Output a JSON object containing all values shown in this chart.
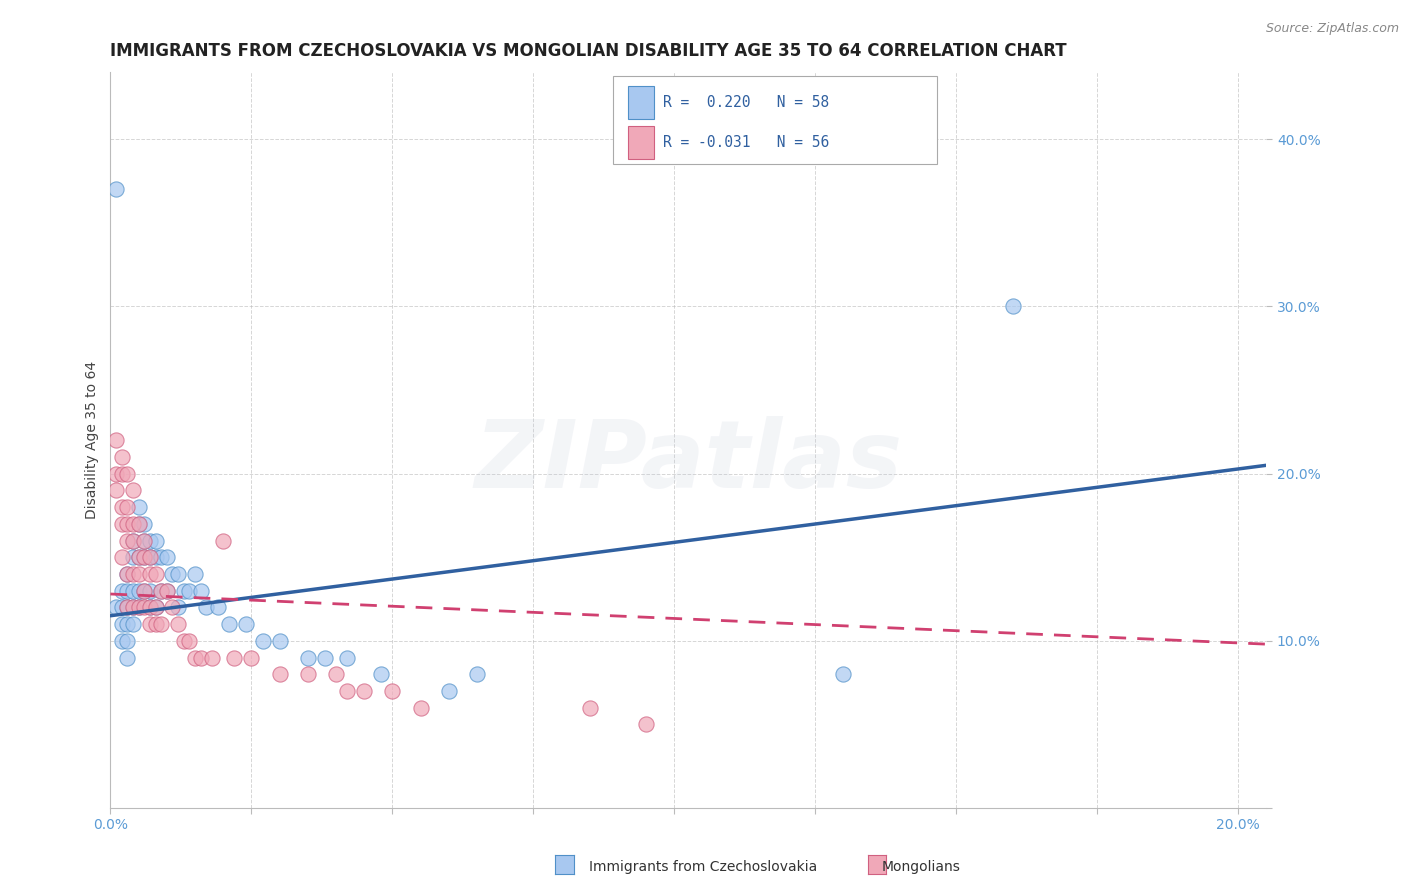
{
  "title": "IMMIGRANTS FROM CZECHOSLOVAKIA VS MONGOLIAN DISABILITY AGE 35 TO 64 CORRELATION CHART",
  "source": "Source: ZipAtlas.com",
  "ylabel": "Disability Age 35 to 64",
  "xlim": [
    0.0,
    0.205
  ],
  "ylim": [
    0.0,
    0.44
  ],
  "xticks": [
    0.0,
    0.025,
    0.05,
    0.075,
    0.1,
    0.125,
    0.15,
    0.175,
    0.2
  ],
  "yticks": [
    0.0,
    0.1,
    0.2,
    0.3,
    0.4
  ],
  "blue_color": "#A8C8F0",
  "pink_color": "#F0A8B8",
  "blue_edge_color": "#5090C8",
  "pink_edge_color": "#D06080",
  "blue_line_color": "#3060A0",
  "pink_line_color": "#D04070",
  "watermark_color": "#C0C8D8",
  "watermark": "ZIPatlas",
  "blue_scatter_x": [
    0.001,
    0.001,
    0.002,
    0.002,
    0.002,
    0.002,
    0.003,
    0.003,
    0.003,
    0.003,
    0.003,
    0.003,
    0.004,
    0.004,
    0.004,
    0.004,
    0.004,
    0.005,
    0.005,
    0.005,
    0.005,
    0.005,
    0.006,
    0.006,
    0.006,
    0.006,
    0.007,
    0.007,
    0.007,
    0.007,
    0.008,
    0.008,
    0.008,
    0.009,
    0.009,
    0.01,
    0.01,
    0.011,
    0.012,
    0.012,
    0.013,
    0.014,
    0.015,
    0.016,
    0.017,
    0.019,
    0.021,
    0.024,
    0.027,
    0.03,
    0.035,
    0.038,
    0.042,
    0.048,
    0.06,
    0.065,
    0.13,
    0.16
  ],
  "blue_scatter_y": [
    0.37,
    0.12,
    0.13,
    0.12,
    0.11,
    0.1,
    0.14,
    0.13,
    0.12,
    0.11,
    0.1,
    0.09,
    0.16,
    0.15,
    0.13,
    0.12,
    0.11,
    0.18,
    0.17,
    0.15,
    0.13,
    0.12,
    0.17,
    0.16,
    0.15,
    0.13,
    0.16,
    0.15,
    0.13,
    0.12,
    0.16,
    0.15,
    0.12,
    0.15,
    0.13,
    0.15,
    0.13,
    0.14,
    0.14,
    0.12,
    0.13,
    0.13,
    0.14,
    0.13,
    0.12,
    0.12,
    0.11,
    0.11,
    0.1,
    0.1,
    0.09,
    0.09,
    0.09,
    0.08,
    0.07,
    0.08,
    0.08,
    0.3
  ],
  "pink_scatter_x": [
    0.001,
    0.001,
    0.001,
    0.002,
    0.002,
    0.002,
    0.002,
    0.002,
    0.003,
    0.003,
    0.003,
    0.003,
    0.003,
    0.003,
    0.004,
    0.004,
    0.004,
    0.004,
    0.004,
    0.005,
    0.005,
    0.005,
    0.005,
    0.006,
    0.006,
    0.006,
    0.006,
    0.007,
    0.007,
    0.007,
    0.007,
    0.008,
    0.008,
    0.008,
    0.009,
    0.009,
    0.01,
    0.011,
    0.012,
    0.013,
    0.014,
    0.015,
    0.016,
    0.018,
    0.02,
    0.022,
    0.025,
    0.03,
    0.035,
    0.04,
    0.042,
    0.045,
    0.05,
    0.055,
    0.085,
    0.095
  ],
  "pink_scatter_y": [
    0.22,
    0.2,
    0.19,
    0.21,
    0.2,
    0.18,
    0.17,
    0.15,
    0.2,
    0.18,
    0.17,
    0.16,
    0.14,
    0.12,
    0.19,
    0.17,
    0.16,
    0.14,
    0.12,
    0.17,
    0.15,
    0.14,
    0.12,
    0.16,
    0.15,
    0.13,
    0.12,
    0.15,
    0.14,
    0.12,
    0.11,
    0.14,
    0.12,
    0.11,
    0.13,
    0.11,
    0.13,
    0.12,
    0.11,
    0.1,
    0.1,
    0.09,
    0.09,
    0.09,
    0.16,
    0.09,
    0.09,
    0.08,
    0.08,
    0.08,
    0.07,
    0.07,
    0.07,
    0.06,
    0.06,
    0.05
  ],
  "blue_trend_x": [
    0.0,
    0.205
  ],
  "blue_trend_y": [
    0.115,
    0.205
  ],
  "pink_trend_x": [
    0.0,
    0.205
  ],
  "pink_trend_y": [
    0.128,
    0.098
  ],
  "background_color": "#FFFFFF",
  "grid_color": "#BBBBBB",
  "title_fontsize": 12,
  "axis_label_fontsize": 10,
  "tick_fontsize": 10,
  "watermark_fontsize": 68,
  "watermark_alpha": 0.18
}
